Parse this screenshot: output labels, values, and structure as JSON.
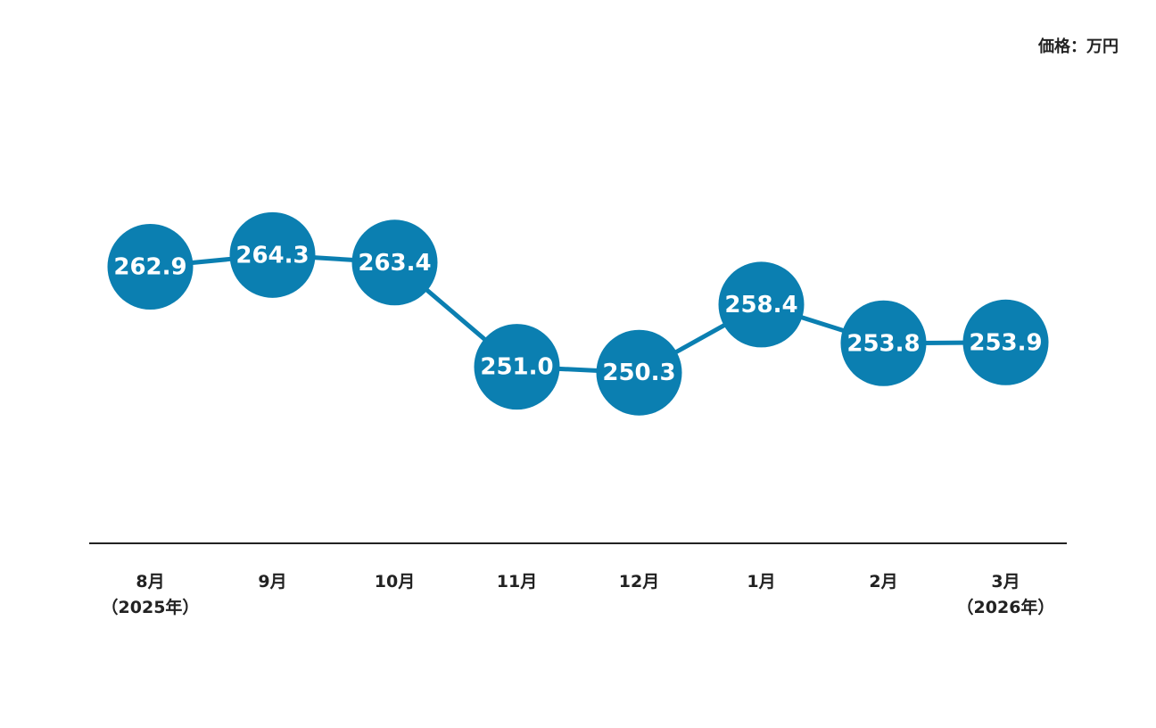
{
  "chart_data": {
    "type": "line",
    "unit_note": "価格：万円",
    "categories": [
      "8月\n（2025年）",
      "9月",
      "10月",
      "11月",
      "12月",
      "1月",
      "2月",
      "3月\n（2026年）"
    ],
    "values": [
      262.9,
      264.3,
      263.4,
      251.0,
      250.3,
      258.4,
      253.8,
      253.9
    ],
    "value_labels": [
      "262.9",
      "264.3",
      "263.4",
      "251.0",
      "250.3",
      "258.4",
      "253.8",
      "253.9"
    ],
    "color": "#0b7fb1",
    "ylim": [
      230,
      275
    ]
  }
}
